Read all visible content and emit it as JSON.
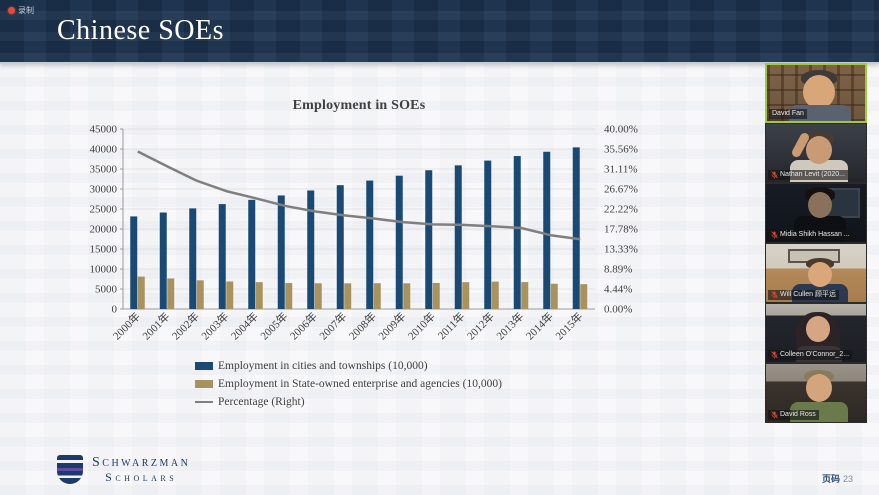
{
  "meeting": {
    "recording_label": "录制",
    "participants": [
      {
        "name": "David Fan",
        "muted": false,
        "active_speaker": true
      },
      {
        "name": "Nathan Levit (2020...",
        "muted": true,
        "active_speaker": false
      },
      {
        "name": "Midia Shikh Hassan ...",
        "muted": true,
        "active_speaker": false
      },
      {
        "name": "Will Cullen 顾平远",
        "muted": true,
        "active_speaker": false
      },
      {
        "name": "Colleen O'Connor_2...",
        "muted": true,
        "active_speaker": false
      },
      {
        "name": "David Ross",
        "muted": true,
        "active_speaker": false
      }
    ]
  },
  "slide": {
    "title": "Chinese SOEs",
    "page_label": "页码",
    "page_number": "23",
    "logo_line1": "Schwarzman",
    "logo_line2": "Scholars"
  },
  "chart_data": {
    "type": "bar",
    "title": "Employment in SOEs",
    "categories": [
      "2000年",
      "2001年",
      "2002年",
      "2003年",
      "2004年",
      "2005年",
      "2006年",
      "2007年",
      "2008年",
      "2009年",
      "2010年",
      "2011年",
      "2012年",
      "2013年",
      "2014年",
      "2015年"
    ],
    "series": [
      {
        "name": "Employment in cities and townships (10,000)",
        "type": "bar",
        "axis": "left",
        "color": "#1a4a74",
        "values": [
          23151,
          24123,
          25159,
          26230,
          27293,
          28389,
          29630,
          30953,
          32103,
          33322,
          34687,
          35914,
          37102,
          38240,
          39310,
          40410
        ]
      },
      {
        "name": "Employment in State-owned enterprise and agencies (10,000)",
        "type": "bar",
        "axis": "left",
        "color": "#a8925e",
        "values": [
          8100,
          7640,
          7160,
          6880,
          6710,
          6490,
          6430,
          6420,
          6450,
          6420,
          6520,
          6700,
          6840,
          6720,
          6310,
          6210
        ]
      },
      {
        "name": "Percentage (Right)",
        "type": "line",
        "axis": "right",
        "color": "#7f7f7f",
        "values": [
          35.0,
          31.7,
          28.5,
          26.2,
          24.6,
          22.9,
          21.7,
          20.8,
          20.1,
          19.3,
          18.8,
          18.7,
          18.4,
          18.0,
          16.4,
          15.5
        ]
      }
    ],
    "left_axis": {
      "min": 0,
      "max": 45000,
      "step": 5000
    },
    "right_axis": {
      "min": 0,
      "max": 40,
      "step": 5,
      "suffix": "%",
      "decimals": 2
    },
    "grid": true,
    "legend_position": "bottom-left"
  }
}
